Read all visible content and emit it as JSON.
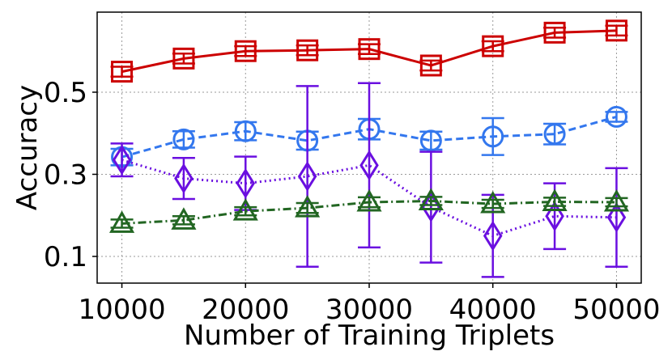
{
  "chart_data": {
    "type": "line",
    "title": "",
    "xlabel": "Number of Training Triplets",
    "ylabel": "Accuracy",
    "xlim": [
      8000,
      52000
    ],
    "ylim": [
      0.035,
      0.695
    ],
    "xticks": [
      10000,
      20000,
      30000,
      40000,
      50000
    ],
    "xtick_labels": [
      "10000",
      "20000",
      "30000",
      "40000",
      "50000"
    ],
    "yticks": [
      0.1,
      0.3,
      0.5
    ],
    "ytick_labels": [
      "0.1",
      "0.3",
      "0.5"
    ],
    "grid": true,
    "legend": "none",
    "x": [
      10000,
      15000,
      20000,
      25000,
      30000,
      35000,
      40000,
      45000,
      50000
    ],
    "series": [
      {
        "color": "#cc0000",
        "marker": "square",
        "linestyle": "solid",
        "values": [
          0.55,
          0.582,
          0.6,
          0.602,
          0.605,
          0.565,
          0.612,
          0.645,
          0.65
        ],
        "err": [
          0.012,
          0.012,
          0.012,
          0.012,
          0.012,
          0.012,
          0.012,
          0.012,
          0.012
        ]
      },
      {
        "color": "#3377ee",
        "marker": "circle",
        "linestyle": "dashed",
        "values": [
          0.342,
          0.385,
          0.405,
          0.382,
          0.41,
          0.382,
          0.392,
          0.398,
          0.44
        ],
        "err": [
          0.02,
          0.02,
          0.022,
          0.022,
          0.025,
          0.022,
          0.045,
          0.025,
          0.012
        ]
      },
      {
        "color": "#6a0fe0",
        "marker": "diamond",
        "linestyle": "dotted",
        "values": [
          0.335,
          0.29,
          0.278,
          0.295,
          0.322,
          0.22,
          0.15,
          0.198,
          0.195
        ],
        "err": [
          0.04,
          0.05,
          0.065,
          0.22,
          0.2,
          0.135,
          0.1,
          0.08,
          0.12
        ]
      },
      {
        "color": "#226622",
        "marker": "triangle",
        "linestyle": "dashdot",
        "values": [
          0.18,
          0.188,
          0.21,
          0.218,
          0.232,
          0.235,
          0.228,
          0.233,
          0.232
        ],
        "err": [
          0.01,
          0.01,
          0.01,
          0.012,
          0.012,
          0.01,
          0.01,
          0.01,
          0.01
        ]
      }
    ]
  }
}
